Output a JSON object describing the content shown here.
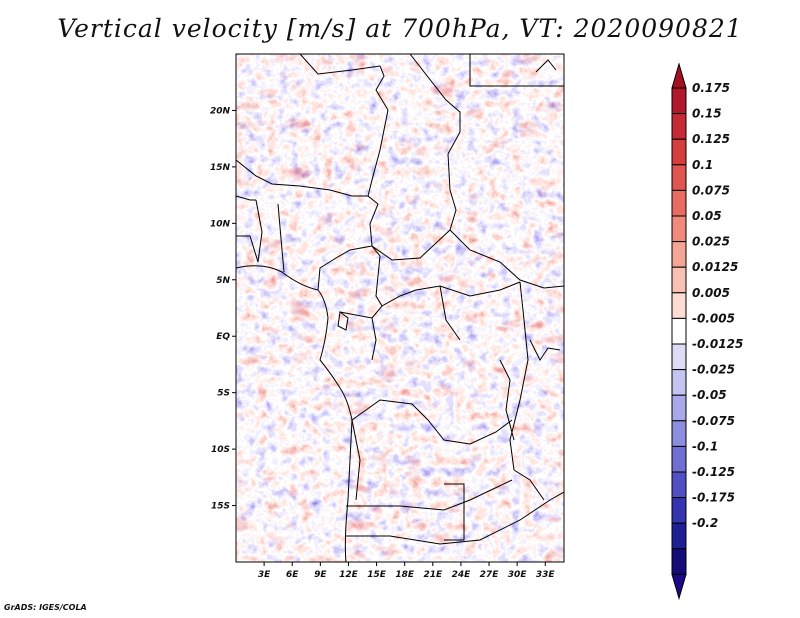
{
  "title": "Vertical velocity [m/s] at 700hPa, VT: 2020090821",
  "footer": "GrADS: IGES/COLA",
  "map": {
    "lon_range": [
      0,
      35
    ],
    "lat_range": [
      -20,
      25
    ],
    "lon_ticks": [
      "3E",
      "6E",
      "9E",
      "12E",
      "15E",
      "18E",
      "21E",
      "24E",
      "27E",
      "30E",
      "33E"
    ],
    "lat_ticks": [
      "20N",
      "15N",
      "10N",
      "5N",
      "EQ",
      "5S",
      "10S",
      "15S"
    ],
    "field": "vertical velocity",
    "units": "m/s",
    "level": "700hPa"
  },
  "colorbar": {
    "labels": [
      "0.175",
      "0.15",
      "0.125",
      "0.1",
      "0.075",
      "0.05",
      "0.025",
      "0.0125",
      "0.005",
      "-0.005",
      "-0.0125",
      "-0.025",
      "-0.05",
      "-0.075",
      "-0.1",
      "-0.125",
      "-0.175",
      "-0.2"
    ],
    "colors": [
      "#b2182b",
      "#c52a35",
      "#d63e3e",
      "#e0554f",
      "#e86c62",
      "#ef8a7c",
      "#f4a595",
      "#f8c1b4",
      "#fcdcd3",
      "#ffffff",
      "#dcdcf5",
      "#c4c4f0",
      "#a9a9ea",
      "#8e8ee0",
      "#6f6fd4",
      "#5050c4",
      "#3535b0",
      "#1f1f95",
      "#150c7a"
    ],
    "top_arrow_color": "#a50f22",
    "bottom_arrow_color": "#1a0a8a"
  }
}
